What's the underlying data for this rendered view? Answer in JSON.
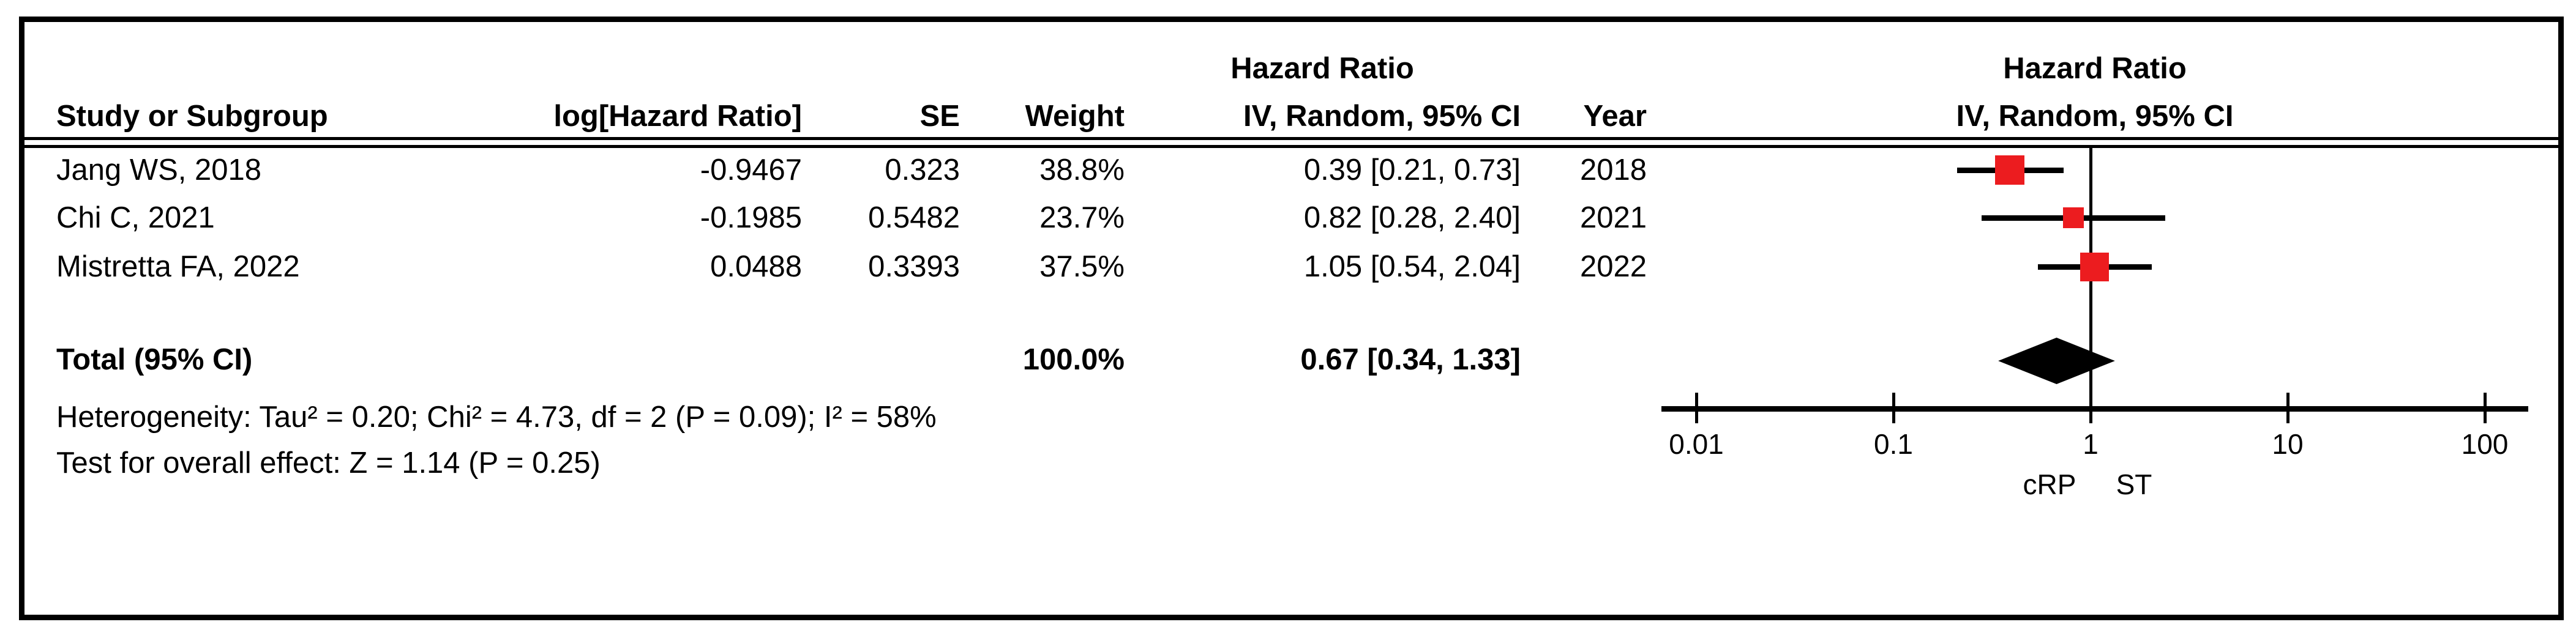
{
  "header": {
    "col_study": "Study or Subgroup",
    "col_loghr": "log[Hazard Ratio]",
    "col_se": "SE",
    "col_weight": "Weight",
    "col_ci": "IV, Random, 95% CI",
    "col_year": "Year",
    "left_panel_title": "Hazard Ratio",
    "right_panel_title": "Hazard Ratio",
    "right_panel_subtitle": "IV, Random, 95% CI"
  },
  "studies": [
    {
      "name": "Jang WS, 2018",
      "log_hr": "-0.9467",
      "se": "0.323",
      "weight": "38.8%",
      "ci_text": "0.39 [0.21, 0.73]",
      "year": "2018"
    },
    {
      "name": "Chi C, 2021",
      "log_hr": "-0.1985",
      "se": "0.5482",
      "weight": "23.7%",
      "ci_text": "0.82 [0.28, 2.40]",
      "year": "2021"
    },
    {
      "name": "Mistretta FA, 2022",
      "log_hr": "0.0488",
      "se": "0.3393",
      "weight": "37.5%",
      "ci_text": "1.05 [0.54, 2.04]",
      "year": "2022"
    }
  ],
  "total": {
    "label": "Total (95% CI)",
    "weight": "100.0%",
    "ci_text": "0.67 [0.34, 1.33]"
  },
  "footnotes": {
    "heterogeneity": "Heterogeneity: Tau² = 0.20; Chi² = 4.73, df = 2 (P = 0.09); I² = 58%",
    "overall_effect": "Test for overall effect: Z = 1.14 (P = 0.25)"
  },
  "axis": {
    "tick_labels": [
      "0.01",
      "0.1",
      "1",
      "10",
      "100"
    ],
    "left_favour_label": "cRP",
    "right_favour_label": "ST"
  },
  "colors": {
    "marker_red": "#ec1c1f",
    "line_black": "#000000"
  },
  "chart_data": {
    "type": "forest",
    "effect_measure": "Hazard Ratio",
    "model": "IV, Random, 95% CI",
    "x_scale": "log10",
    "x_ticks": [
      0.01,
      0.1,
      1,
      10,
      100
    ],
    "null_line": 1,
    "studies": [
      {
        "label": "Jang WS, 2018",
        "hr": 0.39,
        "ci_low": 0.21,
        "ci_high": 0.73,
        "weight_pct": 38.8,
        "year": 2018
      },
      {
        "label": "Chi C, 2021",
        "hr": 0.82,
        "ci_low": 0.28,
        "ci_high": 2.4,
        "weight_pct": 23.7,
        "year": 2021
      },
      {
        "label": "Mistretta FA, 2022",
        "hr": 1.05,
        "ci_low": 0.54,
        "ci_high": 2.04,
        "weight_pct": 37.5,
        "year": 2022
      }
    ],
    "total": {
      "label": "Total (95% CI)",
      "hr": 0.67,
      "ci_low": 0.34,
      "ci_high": 1.33,
      "weight_pct": 100.0
    },
    "heterogeneity": {
      "tau2": 0.2,
      "chi2": 4.73,
      "df": 2,
      "p": 0.09,
      "i2_pct": 58
    },
    "overall_effect": {
      "z": 1.14,
      "p": 0.25
    }
  }
}
